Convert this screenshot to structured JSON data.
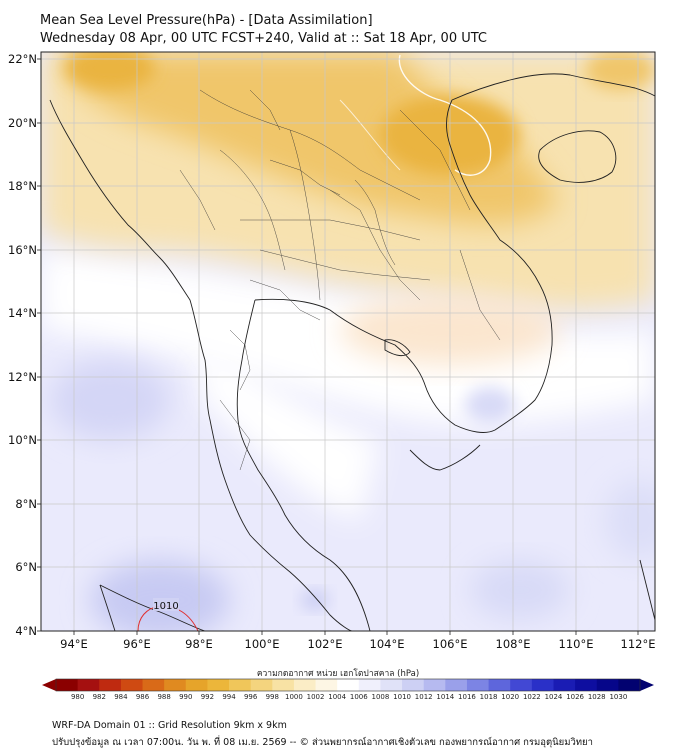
{
  "title": {
    "line1": "Mean Sea Level Pressure(hPa) - [Data Assimilation]",
    "line2": "Wednesday 08 Apr, 00 UTC FCST+240, Valid at :: Sat 18 Apr, 00 UTC"
  },
  "map": {
    "lat_labels": [
      "22°N",
      "20°N",
      "18°N",
      "16°N",
      "14°N",
      "12°N",
      "10°N",
      "8°N",
      "6°N",
      "4°N"
    ],
    "lon_labels": [
      "94°E",
      "96°E",
      "98°E",
      "100°E",
      "102°E",
      "104°E",
      "106°E",
      "108°E",
      "110°E",
      "112°E"
    ],
    "contour_label": "1010",
    "colors": {
      "high_pressure_light": "#f7e2b0",
      "high_pressure_mid": "#f0c66a",
      "high_pressure_strong": "#eab440",
      "neutral": "#ffffff",
      "low_pressure_light": "#eaeafc",
      "low_pressure_mid": "#d4d6f6",
      "coast": "#222222",
      "contour_1010": "#e03030"
    }
  },
  "colorbar": {
    "label": "ความกดอากาศ หน่วย เฮกโตปาสคาล (hPa)",
    "values": [
      "980",
      "982",
      "984",
      "986",
      "988",
      "990",
      "992",
      "994",
      "996",
      "998",
      "1000",
      "1002",
      "1004",
      "1006",
      "1008",
      "1010",
      "1012",
      "1014",
      "1016",
      "1018",
      "1020",
      "1022",
      "1024",
      "1026",
      "1028",
      "1030"
    ],
    "colors": [
      "#8b0000",
      "#a51010",
      "#bf2a10",
      "#cf4a12",
      "#d96a18",
      "#e08a20",
      "#e6a42a",
      "#ecb63a",
      "#f0c65a",
      "#f4d47e",
      "#f8e2a4",
      "#fbedc6",
      "#fdf6e4",
      "#ffffff",
      "#f0f0fc",
      "#e0e2f8",
      "#cdd0f4",
      "#b6baf0",
      "#9aa0ea",
      "#7c84e4",
      "#5e66dc",
      "#4248d4",
      "#2a30c8",
      "#1a1cb4",
      "#0e0ea0",
      "#06068a",
      "#020270"
    ]
  },
  "footer": {
    "line1": "WRF-DA Domain 01 :: Grid Resolution 9km x 9km",
    "line2": "ปรับปรุงข้อมูล ณ เวลา 07:00น. วัน พ. ที่ 08 เม.ย. 2569 -- © ส่วนพยากรณ์อากาศเชิงตัวเลข กองพยากรณ์อากาศ กรมอุตุนิยมวิทยา"
  }
}
